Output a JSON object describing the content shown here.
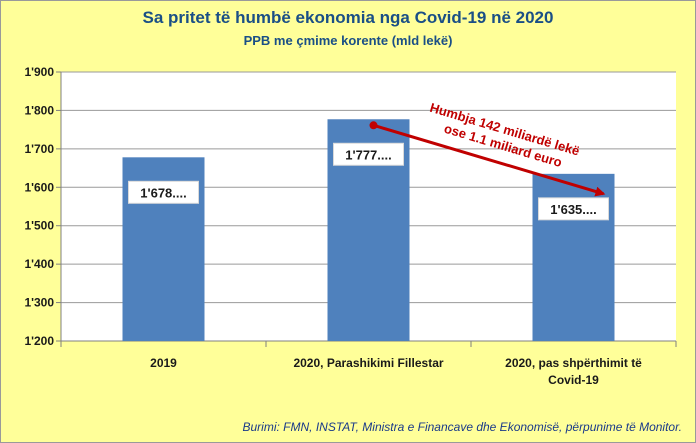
{
  "chart_data": {
    "type": "bar",
    "title": "Sa pritet të humbë ekonomia nga Covid-19 në 2020",
    "subtitle": "PPB me çmime korente (mld lekë)",
    "categories": [
      "2019",
      "2020, Parashikimi Fillestar",
      "2020, pas shpërthimit të Covid-19"
    ],
    "values": [
      1678,
      1777,
      1635
    ],
    "data_labels": [
      "1'678....",
      "1'777....",
      "1'635...."
    ],
    "ylim": [
      1200,
      1900
    ],
    "yticks": [
      1200,
      1300,
      1400,
      1500,
      1600,
      1700,
      1800,
      1900
    ],
    "ytick_labels": [
      "1'200",
      "1'300",
      "1'400",
      "1'500",
      "1'600",
      "1'700",
      "1'800",
      "1'900"
    ],
    "grid": true,
    "annotation": {
      "lines": [
        "Humbja 142 miliardë lekë",
        "ose 1.1 miliard euro"
      ],
      "from_category": 1,
      "to_category": 2
    },
    "colors": {
      "bar": "#4f81bd",
      "annotation": "#c00000",
      "background": "#ffff99"
    },
    "source": "Burimi: FMN, INSTAT, Ministra e Financave dhe Ekonomisë, përpunime të Monitor."
  }
}
